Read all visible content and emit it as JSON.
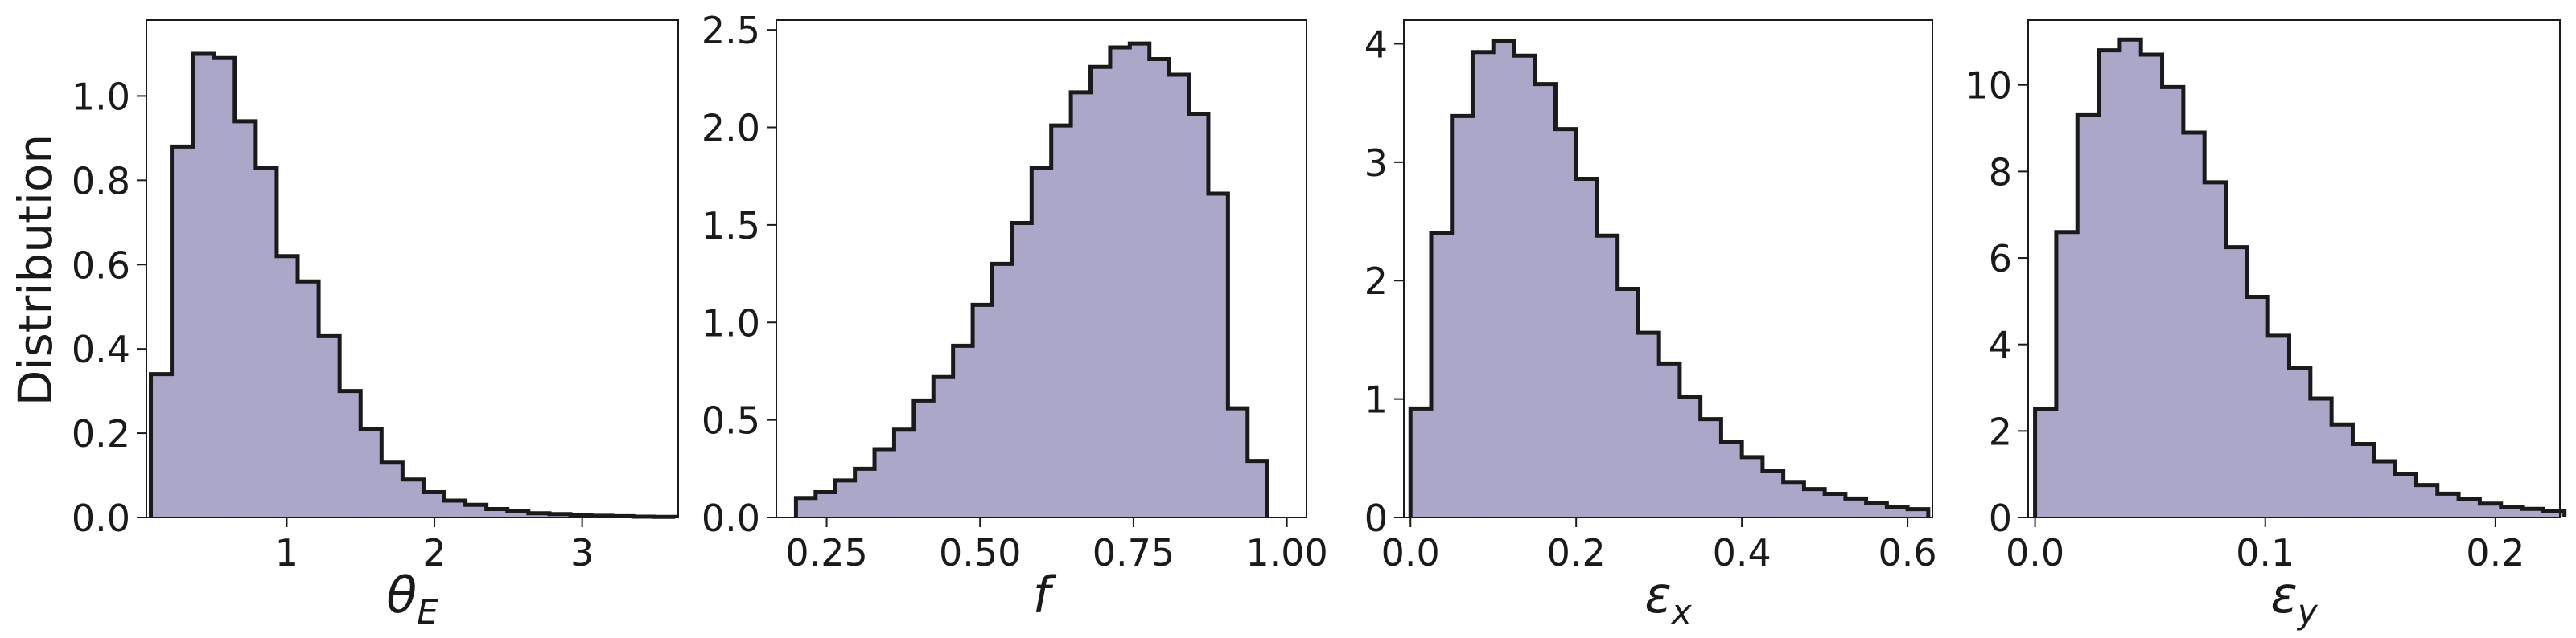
{
  "figure": {
    "fill_color": "#aaa7c9",
    "edge_color": "#1a1a1a",
    "ylabel": "Distribution"
  },
  "chart_data": [
    {
      "type": "bar",
      "id": "theta",
      "xlabel": "θ",
      "xlabel_sub": "E",
      "xlim": [
        0.05,
        3.65
      ],
      "ylim": [
        0,
        1.18
      ],
      "xticks": [
        1,
        2,
        3
      ],
      "xtick_labels": [
        "1",
        "2",
        "3"
      ],
      "yticks": [
        0,
        0.2,
        0.4,
        0.6,
        0.8,
        1.0
      ],
      "ytick_labels": [
        "0.0",
        "0.2",
        "0.4",
        "0.6",
        "0.8",
        "1.0"
      ],
      "bin_start": 0.08,
      "bin_width": 0.142,
      "values": [
        0.34,
        0.88,
        1.1,
        1.09,
        0.94,
        0.83,
        0.62,
        0.56,
        0.43,
        0.3,
        0.21,
        0.13,
        0.09,
        0.06,
        0.04,
        0.03,
        0.02,
        0.015,
        0.01,
        0.008,
        0.006,
        0.004,
        0.003,
        0.002,
        0.0015
      ]
    },
    {
      "type": "bar",
      "id": "f",
      "xlabel": "f",
      "xlabel_sub": "",
      "xlim": [
        0.168,
        1.032
      ],
      "ylim": [
        0,
        2.55
      ],
      "xticks": [
        0.25,
        0.5,
        0.75,
        1.0
      ],
      "xtick_labels": [
        "0.25",
        "0.50",
        "0.75",
        "1.00"
      ],
      "yticks": [
        0,
        0.5,
        1.0,
        1.5,
        2.0,
        2.5
      ],
      "ytick_labels": [
        "0.0",
        "0.5",
        "1.0",
        "1.5",
        "2.0",
        "2.5"
      ],
      "bin_start": 0.2,
      "bin_width": 0.032,
      "values": [
        0.1,
        0.13,
        0.19,
        0.25,
        0.35,
        0.45,
        0.6,
        0.72,
        0.88,
        1.09,
        1.3,
        1.51,
        1.79,
        2.01,
        2.18,
        2.31,
        2.41,
        2.43,
        2.35,
        2.27,
        2.07,
        1.66,
        0.56,
        0.29
      ]
    },
    {
      "type": "bar",
      "id": "ex",
      "xlabel": "ε",
      "xlabel_sub": "x",
      "xlim": [
        -0.008,
        0.63
      ],
      "ylim": [
        0,
        4.2
      ],
      "xticks": [
        0,
        0.2,
        0.4,
        0.6
      ],
      "xtick_labels": [
        "0.0",
        "0.2",
        "0.4",
        "0.6"
      ],
      "yticks": [
        0,
        1,
        2,
        3,
        4
      ],
      "ytick_labels": [
        "0",
        "1",
        "2",
        "3",
        "4"
      ],
      "bin_start": 0.0,
      "bin_width": 0.025,
      "values": [
        0.92,
        2.4,
        3.39,
        3.93,
        4.02,
        3.9,
        3.66,
        3.28,
        2.86,
        2.38,
        1.93,
        1.56,
        1.3,
        1.02,
        0.83,
        0.64,
        0.51,
        0.39,
        0.3,
        0.24,
        0.2,
        0.16,
        0.12,
        0.09,
        0.07
      ]
    },
    {
      "type": "bar",
      "id": "ey",
      "xlabel": "ε",
      "xlabel_sub": "y",
      "xlim": [
        -0.003,
        0.228
      ],
      "ylim": [
        0,
        11.5
      ],
      "xticks": [
        0,
        0.1,
        0.2
      ],
      "xtick_labels": [
        "0.0",
        "0.1",
        "0.2"
      ],
      "yticks": [
        0,
        2,
        4,
        6,
        8,
        10
      ],
      "ytick_labels": [
        "0",
        "2",
        "4",
        "6",
        "8",
        "10"
      ],
      "bin_start": 0.0,
      "bin_width": 0.0092,
      "values": [
        2.5,
        6.6,
        9.3,
        10.8,
        11.05,
        10.7,
        9.95,
        8.9,
        7.75,
        6.25,
        5.1,
        4.2,
        3.45,
        2.75,
        2.15,
        1.7,
        1.3,
        1.0,
        0.75,
        0.55,
        0.42,
        0.32,
        0.25,
        0.2,
        0.15
      ]
    }
  ]
}
